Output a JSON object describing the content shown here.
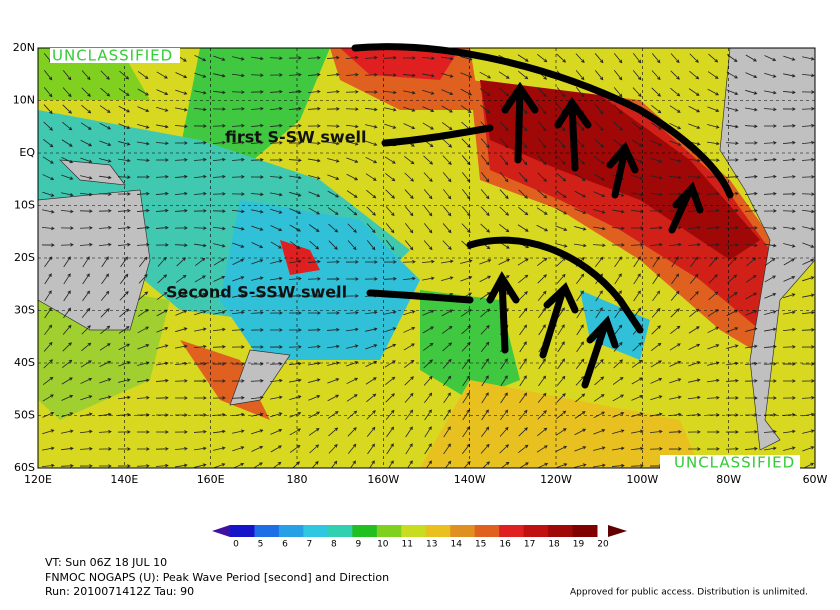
{
  "map": {
    "classification": [
      "UNCLASSIFIED",
      "UNCLASSIFIED"
    ],
    "lat_labels": [
      "20N",
      "10N",
      "EQ",
      "10S",
      "20S",
      "30S",
      "40S",
      "50S",
      "60S"
    ],
    "lon_labels": [
      "120E",
      "140E",
      "160E",
      "180",
      "160W",
      "140W",
      "120W",
      "100W",
      "80W",
      "60W"
    ],
    "annotations": [
      "first S-SW swell",
      "Second S-SSW swell"
    ],
    "colorbar": {
      "levels": [
        0,
        5,
        6,
        7,
        8,
        9,
        10,
        11,
        13,
        14,
        15,
        16,
        17,
        18,
        19,
        20
      ],
      "colors": [
        "#1414c8",
        "#1e6ee6",
        "#28a0e6",
        "#30c8e0",
        "#30d0b0",
        "#20c020",
        "#80d020",
        "#c8dc20",
        "#e8c020",
        "#e09020",
        "#e06020",
        "#e02020",
        "#c01010",
        "#a00808",
        "#800000"
      ]
    },
    "footer": [
      "VT: Sun 06Z 18 JUL 10",
      "FNMOC NOGAPS (U): Peak Wave Period [second] and Direction",
      "Run: 2010071412Z Tau: 90"
    ],
    "disclaimer": "Approved for public access. Distribution is unlimited."
  }
}
